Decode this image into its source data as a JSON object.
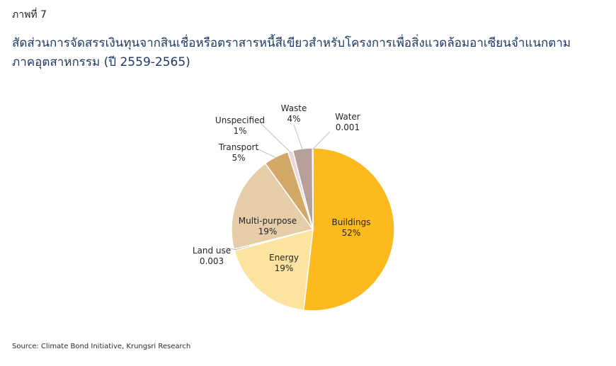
{
  "figure_label": "ภาพที่ 7",
  "title_line1": "สัดส่วนการจัดสรรเงินทุนจากสินเชื่อหรือตราสารหนี้สีเขียวสำหรับโครงการเพื่อสิ่งแวดล้อมอาเซียนจำแนกตาม",
  "title_line2": "ภาคอุตสาหกรรม (ปี 2559-2565)",
  "source": "Source: Climate Bond Initiative, Krungsri Research",
  "chart_data": {
    "type": "pie",
    "slices": [
      {
        "name": "Buildings",
        "label": "52%",
        "value": 52,
        "color": "#FDBA1F"
      },
      {
        "name": "Energy",
        "label": "19%",
        "value": 19,
        "color": "#FDE3A0"
      },
      {
        "name": "Land use",
        "label": "0.003",
        "value": 0.3,
        "color": "#8B6A5A"
      },
      {
        "name": "Multi-purpose",
        "label": "19%",
        "value": 19,
        "color": "#E5CDA8"
      },
      {
        "name": "Transport",
        "label": "5%",
        "value": 5,
        "color": "#D1A866"
      },
      {
        "name": "Unspecified",
        "label": "1%",
        "value": 1,
        "color": "#EAD6D8"
      },
      {
        "name": "Waste",
        "label": "4%",
        "value": 3.9,
        "color": "#B8A09A"
      },
      {
        "name": "Water",
        "label": "0.001",
        "value": 0.1,
        "color": "#8B6A5A"
      }
    ]
  }
}
